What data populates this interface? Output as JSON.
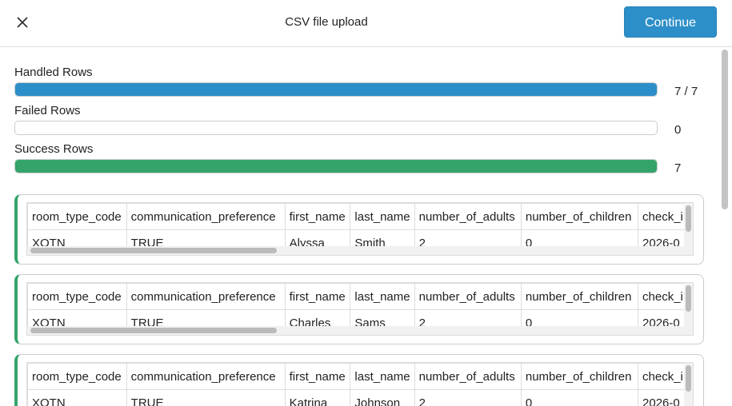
{
  "header": {
    "title": "CSV file upload",
    "button": "Continue"
  },
  "progress": [
    {
      "label": "Handled Rows",
      "value": 7,
      "total": 7,
      "value_label": "7 / 7"
    },
    {
      "label": "Failed Rows",
      "value": 0
    },
    {
      "label": "Success Rows",
      "value": 7
    }
  ],
  "cards": [
    {
      "columns": [
        "room_type_code",
        "communication_preference",
        "first_name",
        "last_name",
        "number_of_adults",
        "number_of_children",
        "check_i"
      ],
      "rows": [
        [
          "XOTN",
          "TRUE",
          "Alyssa",
          "Smith",
          "2",
          "0",
          "2026-0"
        ]
      ]
    },
    {
      "columns": [
        "room_type_code",
        "communication_preference",
        "first_name",
        "last_name",
        "number_of_adults",
        "number_of_children",
        "check_i"
      ],
      "rows": [
        [
          "XOTN",
          "TRUE",
          "Charles",
          "Sams",
          "2",
          "0",
          "2026-0"
        ]
      ]
    },
    {
      "columns": [
        "room_type_code",
        "communication_preference",
        "first_name",
        "last_name",
        "number_of_adults",
        "number_of_children",
        "check_i"
      ],
      "rows": [
        [
          "XOTN",
          "TRUE",
          "Katrina",
          "Johnson",
          "2",
          "0",
          "2026-0"
        ]
      ]
    }
  ]
}
